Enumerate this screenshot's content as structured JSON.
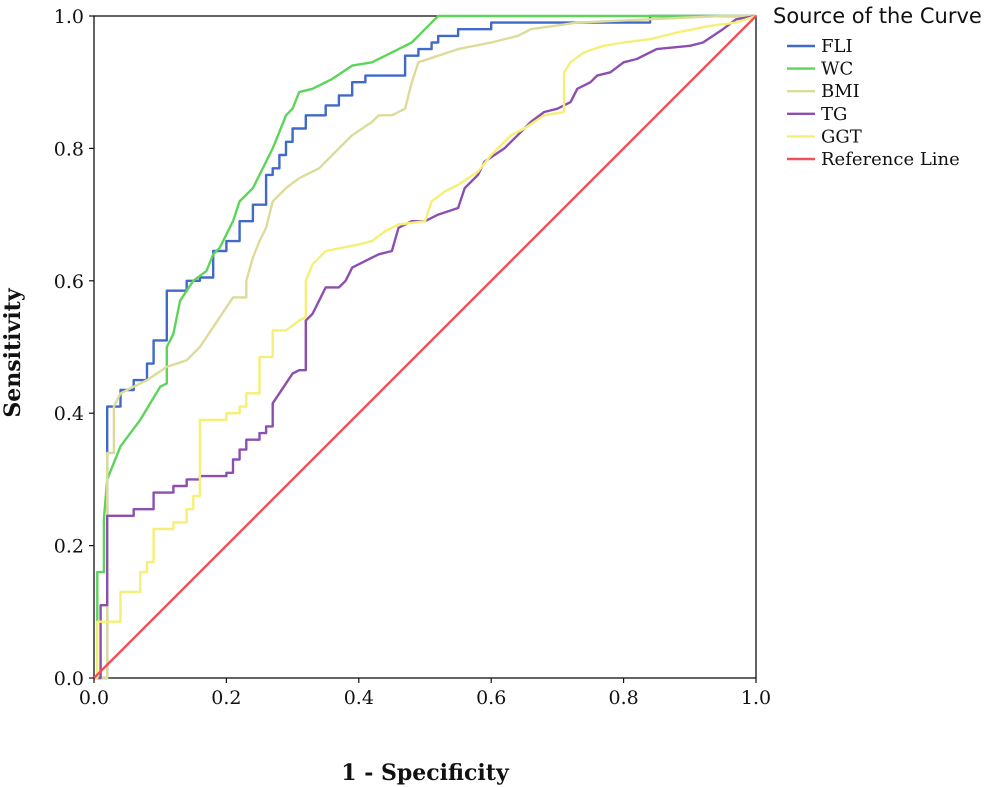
{
  "chart_data": {
    "type": "line",
    "xlabel": "1 - Specificity",
    "ylabel": "Sensitivity",
    "xlim": [
      0,
      1
    ],
    "ylim": [
      0,
      1
    ],
    "x_ticks": [
      "0.0",
      "0.2",
      "0.4",
      "0.6",
      "0.8",
      "1.0"
    ],
    "y_ticks": [
      "0.0",
      "0.2",
      "0.4",
      "0.6",
      "0.8",
      "1.0"
    ],
    "grid": false,
    "legend_placement": "right",
    "legend_title": "Source of the Curve",
    "series": [
      {
        "name": "FLI",
        "color": "#4169c8",
        "points": [
          [
            0,
            0
          ],
          [
            0.02,
            0
          ],
          [
            0.02,
            0.33
          ],
          [
            0.02,
            0.41
          ],
          [
            0.04,
            0.41
          ],
          [
            0.04,
            0.435
          ],
          [
            0.06,
            0.435
          ],
          [
            0.06,
            0.45
          ],
          [
            0.08,
            0.45
          ],
          [
            0.08,
            0.475
          ],
          [
            0.09,
            0.475
          ],
          [
            0.09,
            0.51
          ],
          [
            0.11,
            0.51
          ],
          [
            0.11,
            0.545
          ],
          [
            0.11,
            0.585
          ],
          [
            0.14,
            0.585
          ],
          [
            0.14,
            0.6
          ],
          [
            0.16,
            0.6
          ],
          [
            0.16,
            0.605
          ],
          [
            0.18,
            0.605
          ],
          [
            0.18,
            0.645
          ],
          [
            0.2,
            0.645
          ],
          [
            0.2,
            0.66
          ],
          [
            0.22,
            0.66
          ],
          [
            0.22,
            0.69
          ],
          [
            0.24,
            0.69
          ],
          [
            0.24,
            0.715
          ],
          [
            0.26,
            0.715
          ],
          [
            0.26,
            0.76
          ],
          [
            0.27,
            0.76
          ],
          [
            0.27,
            0.77
          ],
          [
            0.28,
            0.77
          ],
          [
            0.28,
            0.79
          ],
          [
            0.29,
            0.79
          ],
          [
            0.29,
            0.81
          ],
          [
            0.3,
            0.81
          ],
          [
            0.3,
            0.83
          ],
          [
            0.32,
            0.83
          ],
          [
            0.32,
            0.85
          ],
          [
            0.35,
            0.85
          ],
          [
            0.35,
            0.865
          ],
          [
            0.37,
            0.865
          ],
          [
            0.37,
            0.88
          ],
          [
            0.39,
            0.88
          ],
          [
            0.39,
            0.9
          ],
          [
            0.41,
            0.9
          ],
          [
            0.41,
            0.91
          ],
          [
            0.47,
            0.91
          ],
          [
            0.47,
            0.94
          ],
          [
            0.49,
            0.94
          ],
          [
            0.49,
            0.95
          ],
          [
            0.51,
            0.95
          ],
          [
            0.51,
            0.96
          ],
          [
            0.52,
            0.96
          ],
          [
            0.52,
            0.97
          ],
          [
            0.55,
            0.97
          ],
          [
            0.55,
            0.98
          ],
          [
            0.6,
            0.98
          ],
          [
            0.6,
            0.99
          ],
          [
            0.84,
            0.99
          ],
          [
            0.84,
            1.0
          ],
          [
            1.0,
            1.0
          ]
        ]
      },
      {
        "name": "WC",
        "color": "#5dd45a",
        "points": [
          [
            0,
            0
          ],
          [
            0.005,
            0
          ],
          [
            0.005,
            0.16
          ],
          [
            0.015,
            0.16
          ],
          [
            0.015,
            0.24
          ],
          [
            0.02,
            0.3
          ],
          [
            0.04,
            0.35
          ],
          [
            0.07,
            0.39
          ],
          [
            0.1,
            0.44
          ],
          [
            0.11,
            0.445
          ],
          [
            0.11,
            0.5
          ],
          [
            0.12,
            0.52
          ],
          [
            0.13,
            0.57
          ],
          [
            0.15,
            0.6
          ],
          [
            0.17,
            0.615
          ],
          [
            0.18,
            0.64
          ],
          [
            0.19,
            0.65
          ],
          [
            0.21,
            0.69
          ],
          [
            0.22,
            0.72
          ],
          [
            0.24,
            0.74
          ],
          [
            0.25,
            0.76
          ],
          [
            0.27,
            0.8
          ],
          [
            0.28,
            0.825
          ],
          [
            0.29,
            0.85
          ],
          [
            0.3,
            0.86
          ],
          [
            0.31,
            0.885
          ],
          [
            0.33,
            0.89
          ],
          [
            0.36,
            0.905
          ],
          [
            0.39,
            0.925
          ],
          [
            0.42,
            0.93
          ],
          [
            0.45,
            0.945
          ],
          [
            0.48,
            0.96
          ],
          [
            0.5,
            0.98
          ],
          [
            0.52,
            1.0
          ],
          [
            1.0,
            1.0
          ]
        ]
      },
      {
        "name": "BMI",
        "color": "#dcdc9a",
        "points": [
          [
            0,
            0
          ],
          [
            0.02,
            0
          ],
          [
            0.02,
            0.34
          ],
          [
            0.03,
            0.34
          ],
          [
            0.03,
            0.41
          ],
          [
            0.04,
            0.43
          ],
          [
            0.06,
            0.44
          ],
          [
            0.08,
            0.45
          ],
          [
            0.11,
            0.47
          ],
          [
            0.14,
            0.48
          ],
          [
            0.16,
            0.5
          ],
          [
            0.18,
            0.53
          ],
          [
            0.2,
            0.56
          ],
          [
            0.21,
            0.575
          ],
          [
            0.23,
            0.575
          ],
          [
            0.23,
            0.6
          ],
          [
            0.24,
            0.635
          ],
          [
            0.25,
            0.66
          ],
          [
            0.26,
            0.68
          ],
          [
            0.27,
            0.72
          ],
          [
            0.29,
            0.74
          ],
          [
            0.31,
            0.755
          ],
          [
            0.34,
            0.77
          ],
          [
            0.37,
            0.8
          ],
          [
            0.39,
            0.82
          ],
          [
            0.42,
            0.84
          ],
          [
            0.43,
            0.85
          ],
          [
            0.45,
            0.85
          ],
          [
            0.47,
            0.86
          ],
          [
            0.48,
            0.9
          ],
          [
            0.49,
            0.93
          ],
          [
            0.52,
            0.94
          ],
          [
            0.55,
            0.95
          ],
          [
            0.6,
            0.96
          ],
          [
            0.64,
            0.97
          ],
          [
            0.66,
            0.98
          ],
          [
            0.73,
            0.99
          ],
          [
            0.95,
            1.0
          ],
          [
            1.0,
            1.0
          ]
        ]
      },
      {
        "name": "TG",
        "color": "#8c4fb0",
        "points": [
          [
            0,
            0
          ],
          [
            0.01,
            0
          ],
          [
            0.01,
            0.11
          ],
          [
            0.02,
            0.11
          ],
          [
            0.02,
            0.245
          ],
          [
            0.06,
            0.245
          ],
          [
            0.06,
            0.255
          ],
          [
            0.09,
            0.255
          ],
          [
            0.09,
            0.28
          ],
          [
            0.12,
            0.28
          ],
          [
            0.12,
            0.29
          ],
          [
            0.14,
            0.29
          ],
          [
            0.14,
            0.3
          ],
          [
            0.16,
            0.3
          ],
          [
            0.16,
            0.305
          ],
          [
            0.2,
            0.305
          ],
          [
            0.2,
            0.31
          ],
          [
            0.21,
            0.31
          ],
          [
            0.21,
            0.33
          ],
          [
            0.22,
            0.33
          ],
          [
            0.22,
            0.345
          ],
          [
            0.23,
            0.345
          ],
          [
            0.23,
            0.36
          ],
          [
            0.25,
            0.36
          ],
          [
            0.25,
            0.37
          ],
          [
            0.26,
            0.37
          ],
          [
            0.26,
            0.38
          ],
          [
            0.27,
            0.38
          ],
          [
            0.27,
            0.415
          ],
          [
            0.29,
            0.445
          ],
          [
            0.3,
            0.46
          ],
          [
            0.31,
            0.465
          ],
          [
            0.32,
            0.465
          ],
          [
            0.32,
            0.54
          ],
          [
            0.33,
            0.55
          ],
          [
            0.34,
            0.57
          ],
          [
            0.35,
            0.59
          ],
          [
            0.37,
            0.59
          ],
          [
            0.38,
            0.6
          ],
          [
            0.39,
            0.62
          ],
          [
            0.41,
            0.63
          ],
          [
            0.43,
            0.64
          ],
          [
            0.45,
            0.645
          ],
          [
            0.46,
            0.68
          ],
          [
            0.48,
            0.69
          ],
          [
            0.5,
            0.69
          ],
          [
            0.52,
            0.7
          ],
          [
            0.55,
            0.71
          ],
          [
            0.56,
            0.74
          ],
          [
            0.58,
            0.76
          ],
          [
            0.59,
            0.78
          ],
          [
            0.62,
            0.8
          ],
          [
            0.64,
            0.82
          ],
          [
            0.66,
            0.84
          ],
          [
            0.68,
            0.855
          ],
          [
            0.7,
            0.86
          ],
          [
            0.72,
            0.87
          ],
          [
            0.73,
            0.89
          ],
          [
            0.75,
            0.9
          ],
          [
            0.76,
            0.91
          ],
          [
            0.78,
            0.915
          ],
          [
            0.8,
            0.93
          ],
          [
            0.82,
            0.935
          ],
          [
            0.85,
            0.95
          ],
          [
            0.9,
            0.955
          ],
          [
            0.92,
            0.96
          ],
          [
            0.95,
            0.98
          ],
          [
            0.97,
            0.995
          ],
          [
            1.0,
            1.0
          ]
        ]
      },
      {
        "name": "GGT",
        "color": "#f5f075",
        "points": [
          [
            0,
            0
          ],
          [
            0.005,
            0
          ],
          [
            0.005,
            0.085
          ],
          [
            0.04,
            0.085
          ],
          [
            0.04,
            0.13
          ],
          [
            0.07,
            0.13
          ],
          [
            0.07,
            0.16
          ],
          [
            0.08,
            0.16
          ],
          [
            0.08,
            0.175
          ],
          [
            0.09,
            0.175
          ],
          [
            0.09,
            0.225
          ],
          [
            0.12,
            0.225
          ],
          [
            0.12,
            0.235
          ],
          [
            0.14,
            0.235
          ],
          [
            0.14,
            0.255
          ],
          [
            0.15,
            0.255
          ],
          [
            0.15,
            0.275
          ],
          [
            0.16,
            0.275
          ],
          [
            0.16,
            0.39
          ],
          [
            0.2,
            0.39
          ],
          [
            0.2,
            0.4
          ],
          [
            0.22,
            0.4
          ],
          [
            0.22,
            0.41
          ],
          [
            0.23,
            0.41
          ],
          [
            0.23,
            0.43
          ],
          [
            0.25,
            0.43
          ],
          [
            0.25,
            0.485
          ],
          [
            0.27,
            0.485
          ],
          [
            0.27,
            0.525
          ],
          [
            0.29,
            0.525
          ],
          [
            0.31,
            0.54
          ],
          [
            0.32,
            0.545
          ],
          [
            0.32,
            0.6
          ],
          [
            0.33,
            0.625
          ],
          [
            0.35,
            0.645
          ],
          [
            0.4,
            0.655
          ],
          [
            0.42,
            0.66
          ],
          [
            0.44,
            0.675
          ],
          [
            0.46,
            0.685
          ],
          [
            0.5,
            0.69
          ],
          [
            0.51,
            0.72
          ],
          [
            0.53,
            0.735
          ],
          [
            0.55,
            0.745
          ],
          [
            0.58,
            0.765
          ],
          [
            0.6,
            0.79
          ],
          [
            0.63,
            0.82
          ],
          [
            0.65,
            0.83
          ],
          [
            0.68,
            0.85
          ],
          [
            0.71,
            0.855
          ],
          [
            0.71,
            0.915
          ],
          [
            0.72,
            0.93
          ],
          [
            0.74,
            0.945
          ],
          [
            0.77,
            0.955
          ],
          [
            0.8,
            0.96
          ],
          [
            0.84,
            0.965
          ],
          [
            0.88,
            0.975
          ],
          [
            0.93,
            0.985
          ],
          [
            0.97,
            0.99
          ],
          [
            1.0,
            1.0
          ]
        ]
      },
      {
        "name": "Reference Line",
        "color": "#f0505a",
        "points": [
          [
            0,
            0
          ],
          [
            1,
            1
          ]
        ]
      }
    ]
  }
}
